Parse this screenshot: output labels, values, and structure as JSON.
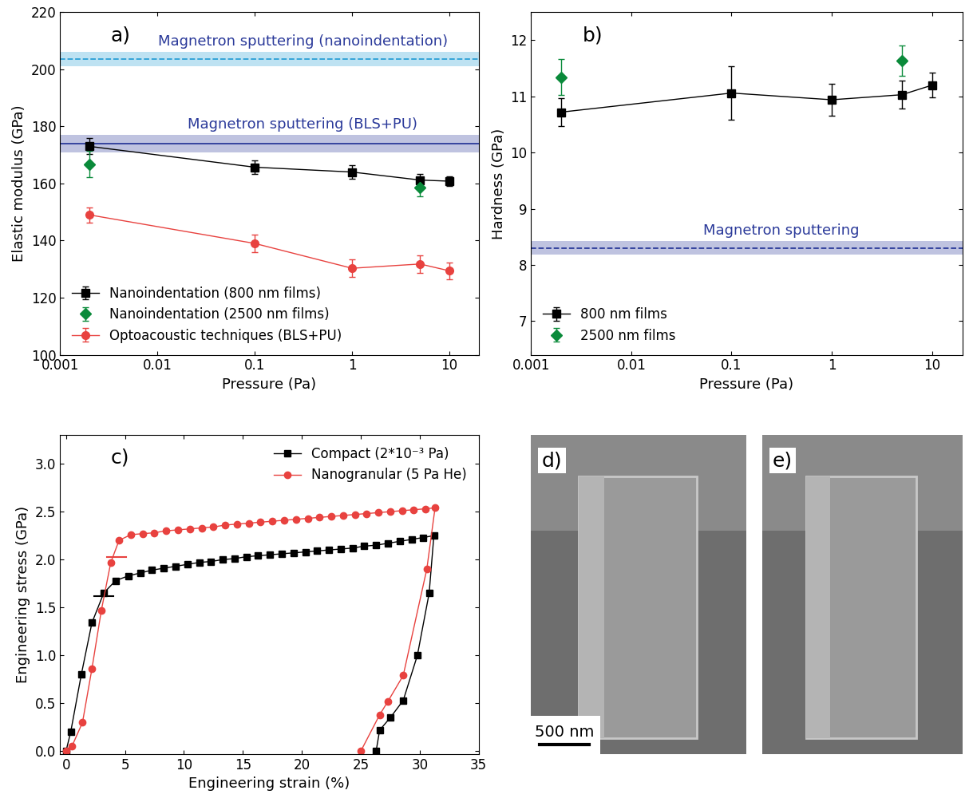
{
  "chart_data": [
    {
      "type": "line",
      "annotations": [
        "a)"
      ],
      "x_label": "Pressure (Pa)",
      "y_label": "Elastic modulus (GPa)",
      "log": "x",
      "xlim": [
        0.001,
        20
      ],
      "xticks": [
        0.001,
        0.01,
        0.1,
        1,
        10
      ],
      "ylim": [
        100,
        220
      ],
      "yticks": [
        100,
        120,
        140,
        160,
        180,
        200,
        220
      ],
      "legend": "lower left",
      "reference_lines": [
        {
          "label": "Magnetron sputtering (nanoindentation)",
          "value": 203.5,
          "band": [
            201,
            206
          ],
          "color": "#2a9fd6",
          "line_style": "dashed"
        },
        {
          "label": "Magnetron sputtering (BLS+PU)",
          "value": 174,
          "band": [
            171,
            177
          ],
          "color": "#2b3a9a",
          "line_style": "solid"
        }
      ],
      "series": [
        {
          "name": "Nanoindentation (800 nm films)",
          "color": "#000000",
          "marker": "square",
          "line_style": "solid",
          "x": [
            0.002,
            0.1,
            1,
            5,
            10
          ],
          "values": [
            173,
            165.7,
            164,
            161.2,
            160.8
          ],
          "errors": [
            2.8,
            2.5,
            2.3,
            2,
            1.8
          ]
        },
        {
          "name": "Nanoindentation (2500 nm films)",
          "color": "#0a8a3a",
          "marker": "diamond",
          "line_style": "none",
          "x": [
            0.002,
            5
          ],
          "values": [
            166.8,
            158.5
          ],
          "errors": [
            4.5,
            3
          ]
        },
        {
          "name": "Optoacoustic techniques (BLS+PU)",
          "color": "#e8423f",
          "marker": "circle",
          "line_style": "solid",
          "x": [
            0.002,
            0.1,
            1,
            5,
            10
          ],
          "values": [
            149,
            139,
            130.3,
            131.8,
            129.4
          ],
          "errors": [
            2.7,
            3,
            3,
            3,
            3
          ]
        }
      ]
    },
    {
      "type": "line",
      "annotations": [
        "b)"
      ],
      "x_label": "Pressure (Pa)",
      "y_label": "Hardness (GPa)",
      "log": "x",
      "xlim": [
        0.001,
        20
      ],
      "xticks": [
        0.001,
        0.01,
        0.1,
        1,
        10
      ],
      "ylim": [
        6.4,
        12.5
      ],
      "yticks": [
        7,
        8,
        9,
        10,
        11,
        12
      ],
      "legend": "lower left",
      "reference_lines": [
        {
          "label": "Magnetron sputtering",
          "value": 8.3,
          "band": [
            8.18,
            8.42
          ],
          "color": "#2b3a9a",
          "line_style": "dashed"
        }
      ],
      "series": [
        {
          "name": "800 nm films",
          "color": "#000000",
          "marker": "square",
          "line_style": "solid",
          "x": [
            0.002,
            0.1,
            1,
            5,
            10
          ],
          "values": [
            10.72,
            11.06,
            10.94,
            11.03,
            11.2
          ],
          "errors": [
            0.25,
            0.48,
            0.28,
            0.25,
            0.22
          ]
        },
        {
          "name": "2500 nm films",
          "color": "#0a8a3a",
          "marker": "diamond",
          "line_style": "none",
          "x": [
            0.002,
            5
          ],
          "values": [
            11.34,
            11.64
          ],
          "errors": [
            0.32,
            0.27
          ]
        }
      ]
    },
    {
      "type": "line",
      "annotations": [
        "c)"
      ],
      "x_label": "Engineering strain (%)",
      "y_label": "Engineering stress (GPa)",
      "xlim": [
        -0.5,
        35
      ],
      "xticks": [
        0,
        5,
        10,
        15,
        20,
        25,
        30,
        35
      ],
      "ylim": [
        -0.03,
        3.3
      ],
      "yticks": [
        {
          "value": 0,
          "label": "0.0"
        },
        0.5,
        {
          "value": 1,
          "label": "1.0"
        },
        1.5,
        {
          "value": 2,
          "label": "2.0"
        },
        2.5,
        {
          "value": 3,
          "label": "3.0"
        }
      ],
      "legend": "upper right",
      "series": [
        {
          "name": "Compact (2*10⁻³ Pa)",
          "color": "#000000",
          "marker": "square",
          "line_style": "solid",
          "yield": {
            "x": 3.2,
            "y": 1.62
          },
          "x": [
            0,
            0.4,
            1.3,
            2.2,
            3.2,
            4.2,
            5.3,
            6.3,
            7.3,
            8.3,
            9.3,
            10.3,
            11.3,
            12.3,
            13.3,
            14.3,
            15.3,
            16.3,
            17.3,
            18.3,
            19.3,
            20.3,
            21.3,
            22.3,
            23.3,
            24.3,
            25.3,
            26.3,
            27.3,
            28.3,
            29.3,
            30.3,
            31.2,
            30.8,
            29.8,
            28.6,
            27.5,
            26.6,
            26.3
          ],
          "values": [
            0,
            0.2,
            0.8,
            1.34,
            1.65,
            1.78,
            1.83,
            1.86,
            1.89,
            1.91,
            1.93,
            1.95,
            1.97,
            1.98,
            2.0,
            2.01,
            2.03,
            2.04,
            2.05,
            2.06,
            2.07,
            2.08,
            2.09,
            2.1,
            2.11,
            2.12,
            2.14,
            2.15,
            2.17,
            2.19,
            2.21,
            2.23,
            2.25,
            1.65,
            1.0,
            0.53,
            0.35,
            0.22,
            0
          ]
        },
        {
          "name": "Nanogranular (5 Pa He)",
          "color": "#e8423f",
          "marker": "circle",
          "line_style": "solid",
          "yield": {
            "x": 4.3,
            "y": 2.03
          },
          "x": [
            0,
            0.5,
            1.4,
            2.2,
            3.0,
            3.8,
            4.5,
            5.5,
            6.5,
            7.5,
            8.5,
            9.5,
            10.5,
            11.5,
            12.5,
            13.5,
            14.5,
            15.5,
            16.5,
            17.5,
            18.5,
            19.5,
            20.5,
            21.5,
            22.5,
            23.5,
            24.5,
            25.5,
            26.5,
            27.5,
            28.5,
            29.5,
            30.5,
            31.3,
            30.6,
            28.6,
            27.3,
            26.6,
            25.0
          ],
          "values": [
            0,
            0.05,
            0.3,
            0.86,
            1.47,
            1.97,
            2.2,
            2.26,
            2.27,
            2.28,
            2.3,
            2.31,
            2.32,
            2.33,
            2.34,
            2.36,
            2.37,
            2.38,
            2.39,
            2.4,
            2.41,
            2.42,
            2.43,
            2.44,
            2.45,
            2.46,
            2.47,
            2.48,
            2.49,
            2.5,
            2.51,
            2.52,
            2.53,
            2.54,
            1.9,
            0.79,
            0.52,
            0.38,
            0
          ]
        }
      ]
    },
    {
      "type": "image",
      "annotations": [
        "d)"
      ],
      "scale_bar_label": "500 nm"
    },
    {
      "type": "image",
      "annotations": [
        "e)"
      ]
    }
  ]
}
